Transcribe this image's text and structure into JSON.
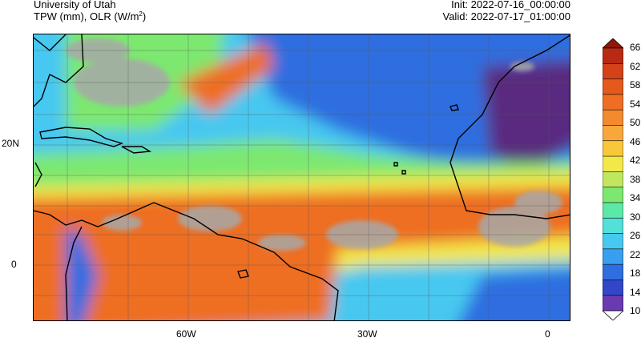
{
  "header": {
    "source": "University of Utah",
    "fields_prefix": "TPW (mm), OLR (W/m",
    "fields_sup": "2",
    "fields_suffix": ")",
    "init": "Init: 2022-07-16_00:00:00",
    "valid": "Valid: 2022-07-17_01:00:00"
  },
  "axes": {
    "lat_labels": [
      "20N",
      "0"
    ],
    "lon_labels": [
      "60W",
      "30W",
      "0"
    ]
  },
  "colorbar": {
    "labels": [
      "66",
      "62",
      "58",
      "54",
      "50",
      "46",
      "42",
      "38",
      "34",
      "30",
      "26",
      "22",
      "18",
      "14",
      "10"
    ],
    "colors": [
      "#5a2a80",
      "#6a3ab0",
      "#3346c8",
      "#2f6ee0",
      "#3a9ef0",
      "#46c8f0",
      "#53e0d8",
      "#5ce8a8",
      "#7ce870",
      "#bfe860",
      "#f2e84a",
      "#f8c83a",
      "#f8a83a",
      "#f48a2e",
      "#ee6e24",
      "#e45a1c",
      "#d4421a",
      "#b82a14",
      "#8e1808"
    ]
  },
  "map": {
    "colors": {
      "ocean_dry": "#2f6ee0",
      "ocean_mid": "#46c8f0",
      "moist_green": "#7ce870",
      "moist_yellow": "#f2e84a",
      "moist_orange": "#ee6e24",
      "desert_purple": "#5a2a80",
      "cloud_gray": "#a0a0a0",
      "coast": "#000000"
    }
  }
}
